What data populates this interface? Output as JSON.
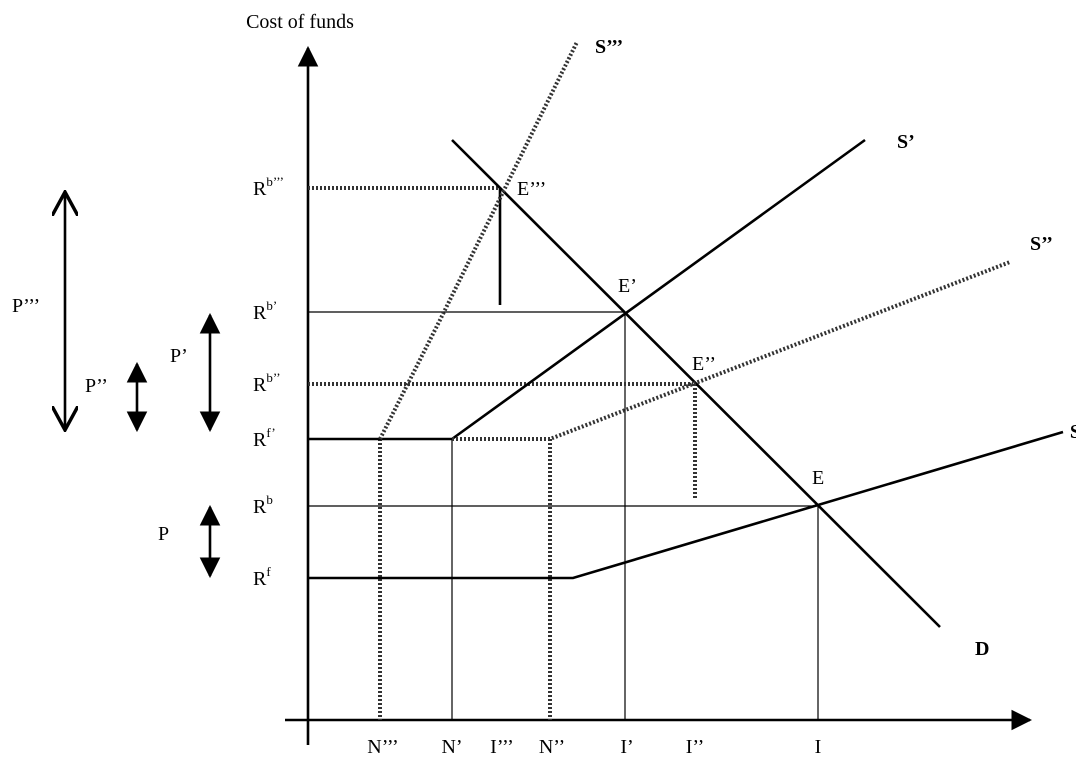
{
  "axis_title": "Cost of funds",
  "y_labels": [
    {
      "base": "R",
      "sup": "b’’’"
    },
    {
      "base": "R",
      "sup": "b’"
    },
    {
      "base": "R",
      "sup": "b’’"
    },
    {
      "base": "R",
      "sup": "f’"
    },
    {
      "base": "R",
      "sup": "b"
    },
    {
      "base": "R",
      "sup": "f"
    }
  ],
  "x_labels": [
    "N’’’",
    "N’",
    "I’’’",
    "N’’",
    "I’",
    "I’’",
    "I"
  ],
  "curve_labels": [
    "S’’’",
    "S’",
    "S’’",
    "S",
    "D"
  ],
  "point_labels": [
    "E’’’",
    "E’",
    "E’’",
    "E"
  ],
  "premium_labels": [
    "P’’’",
    "P’’",
    "P’",
    "P"
  ]
}
